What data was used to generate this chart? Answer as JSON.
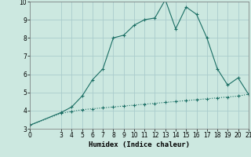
{
  "title": "",
  "xlabel": "Humidex (Indice chaleur)",
  "ylabel": "",
  "bg_color": "#cce8e0",
  "grid_color": "#aacccc",
  "line_color": "#1a6e64",
  "x_upper": [
    0,
    3,
    4,
    5,
    6,
    7,
    8,
    9,
    10,
    11,
    12,
    13,
    14,
    15,
    16,
    17,
    18,
    19,
    20,
    21
  ],
  "y_upper": [
    3.2,
    3.9,
    4.2,
    4.8,
    5.7,
    6.3,
    8.0,
    8.15,
    8.7,
    9.0,
    9.1,
    10.1,
    8.5,
    9.7,
    9.3,
    8.0,
    6.3,
    5.4,
    5.8,
    4.9
  ],
  "x_lower": [
    0,
    3,
    4,
    5,
    6,
    7,
    8,
    9,
    10,
    11,
    12,
    13,
    14,
    15,
    16,
    17,
    18,
    19,
    20,
    21
  ],
  "y_lower": [
    3.2,
    3.85,
    3.95,
    4.05,
    4.1,
    4.15,
    4.2,
    4.25,
    4.3,
    4.35,
    4.4,
    4.45,
    4.5,
    4.55,
    4.6,
    4.65,
    4.7,
    4.75,
    4.8,
    4.9
  ],
  "xlim": [
    0,
    21
  ],
  "ylim": [
    3,
    10
  ],
  "xticks": [
    0,
    3,
    4,
    5,
    6,
    7,
    8,
    9,
    10,
    11,
    12,
    13,
    14,
    15,
    16,
    17,
    18,
    19,
    20,
    21
  ],
  "yticks": [
    3,
    4,
    5,
    6,
    7,
    8,
    9,
    10
  ],
  "marker": "+",
  "markersize": 3,
  "linewidth": 0.8,
  "tick_fontsize": 5.5,
  "xlabel_fontsize": 6.5
}
